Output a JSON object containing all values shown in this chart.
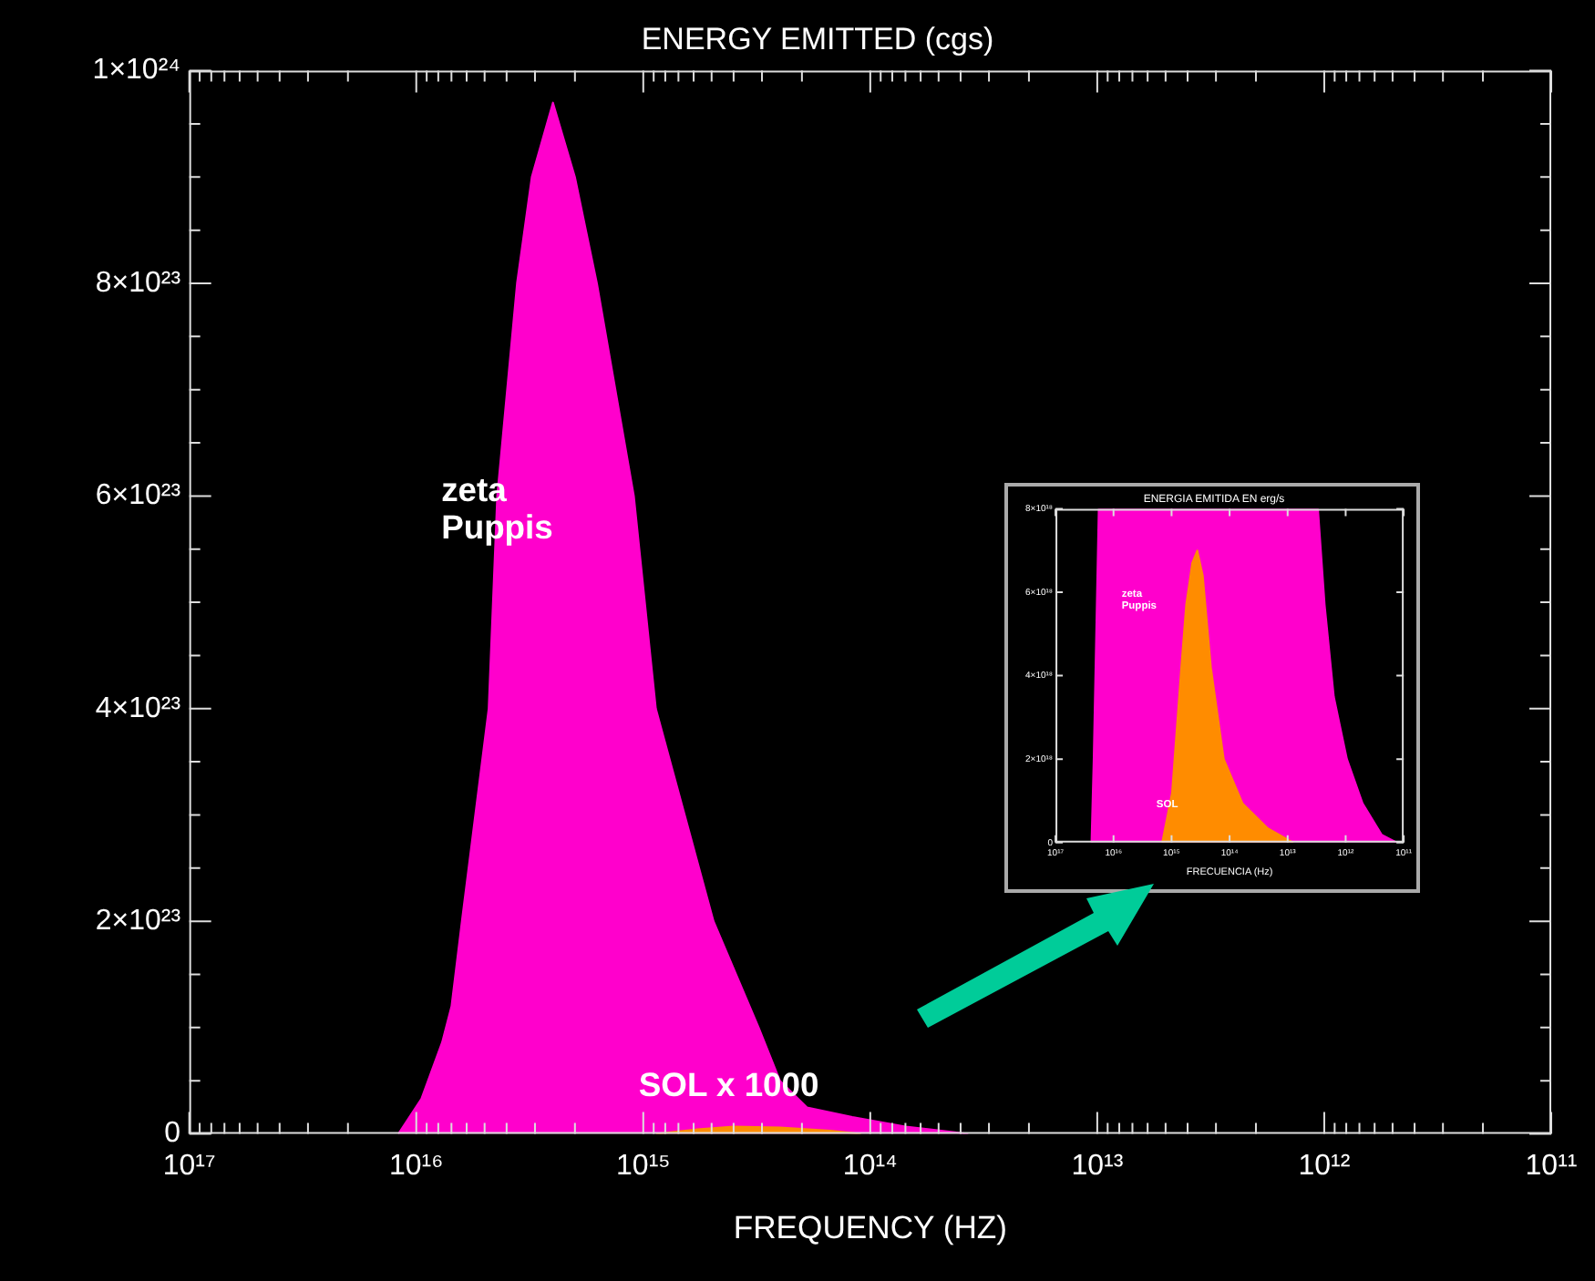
{
  "chart_data": [
    {
      "type": "area",
      "title": "ENERGY EMITTED (cgs)",
      "xlabel": "FREQUENCY (HZ)",
      "log": "x",
      "legend": false,
      "grid": false,
      "xlim": [
        1e+17,
        100000000000.0
      ],
      "xticks": [
        {
          "value": 1e+17,
          "label": "10¹⁷"
        },
        {
          "value": 9e+16,
          "label": null
        },
        {
          "value": 8e+16,
          "label": null
        },
        {
          "value": 7e+16,
          "label": null
        },
        {
          "value": 6e+16,
          "label": null
        },
        {
          "value": 5e+16,
          "label": null
        },
        {
          "value": 4e+16,
          "label": null
        },
        {
          "value": 3e+16,
          "label": null
        },
        {
          "value": 2e+16,
          "label": null
        },
        {
          "value": 1e+16,
          "label": "10¹⁶"
        },
        {
          "value": 9000000000000000.0,
          "label": null
        },
        {
          "value": 8000000000000000.0,
          "label": null
        },
        {
          "value": 7000000000000000.0,
          "label": null
        },
        {
          "value": 6000000000000000.0,
          "label": null
        },
        {
          "value": 5000000000000000.0,
          "label": null
        },
        {
          "value": 4000000000000000.0,
          "label": null
        },
        {
          "value": 3000000000000000.0,
          "label": null
        },
        {
          "value": 2000000000000000.0,
          "label": null
        },
        {
          "value": 1000000000000000.0,
          "label": "10¹⁵"
        },
        {
          "value": 900000000000000.0,
          "label": null
        },
        {
          "value": 800000000000000.0,
          "label": null
        },
        {
          "value": 700000000000000.0,
          "label": null
        },
        {
          "value": 600000000000000.0,
          "label": null
        },
        {
          "value": 500000000000000.0,
          "label": null
        },
        {
          "value": 400000000000000.0,
          "label": null
        },
        {
          "value": 300000000000000.0,
          "label": null
        },
        {
          "value": 200000000000000.0,
          "label": null
        },
        {
          "value": 100000000000000.0,
          "label": "10¹⁴"
        },
        {
          "value": 90000000000000.0,
          "label": null
        },
        {
          "value": 80000000000000.0,
          "label": null
        },
        {
          "value": 70000000000000.0,
          "label": null
        },
        {
          "value": 60000000000000.0,
          "label": null
        },
        {
          "value": 50000000000000.0,
          "label": null
        },
        {
          "value": 40000000000000.0,
          "label": null
        },
        {
          "value": 30000000000000.0,
          "label": null
        },
        {
          "value": 20000000000000.0,
          "label": null
        },
        {
          "value": 10000000000000.0,
          "label": "10¹³"
        },
        {
          "value": 9000000000000.0,
          "label": null
        },
        {
          "value": 8000000000000.0,
          "label": null
        },
        {
          "value": 7000000000000.0,
          "label": null
        },
        {
          "value": 6000000000000.0,
          "label": null
        },
        {
          "value": 5000000000000.0,
          "label": null
        },
        {
          "value": 4000000000000.0,
          "label": null
        },
        {
          "value": 3000000000000.0,
          "label": null
        },
        {
          "value": 2000000000000.0,
          "label": null
        },
        {
          "value": 1000000000000.0,
          "label": "10¹²"
        },
        {
          "value": 900000000000.0,
          "label": null
        },
        {
          "value": 800000000000.0,
          "label": null
        },
        {
          "value": 700000000000.0,
          "label": null
        },
        {
          "value": 600000000000.0,
          "label": null
        },
        {
          "value": 500000000000.0,
          "label": null
        },
        {
          "value": 400000000000.0,
          "label": null
        },
        {
          "value": 300000000000.0,
          "label": null
        },
        {
          "value": 200000000000.0,
          "label": null
        },
        {
          "value": 100000000000.0,
          "label": "10¹¹"
        }
      ],
      "ylim": [
        0,
        1e+24
      ],
      "yticks": [
        0,
        {
          "value": 5e+22,
          "label": null
        },
        {
          "value": 1e+23,
          "label": null
        },
        {
          "value": 1.5e+23,
          "label": null
        },
        {
          "value": 2e+23,
          "label": "2×10²³"
        },
        {
          "value": 2.5e+23,
          "label": null
        },
        {
          "value": 3e+23,
          "label": null
        },
        {
          "value": 3.5e+23,
          "label": null
        },
        {
          "value": 4e+23,
          "label": "4×10²³"
        },
        {
          "value": 4.5e+23,
          "label": null
        },
        {
          "value": 5e+23,
          "label": null
        },
        {
          "value": 5.5e+23,
          "label": null
        },
        {
          "value": 6e+23,
          "label": "6×10²³"
        },
        {
          "value": 6.5e+23,
          "label": null
        },
        {
          "value": 7e+23,
          "label": null
        },
        {
          "value": 7.5e+23,
          "label": null
        },
        {
          "value": 8e+23,
          "label": "8×10²³"
        },
        {
          "value": 8.5e+23,
          "label": null
        },
        {
          "value": 9e+23,
          "label": null
        },
        {
          "value": 9.5e+23,
          "label": null
        },
        {
          "value": 1e+24,
          "label": "1×10²⁴"
        }
      ],
      "series": [
        {
          "name": "zeta Puppis",
          "color": "#ff00cc",
          "x": [
            1.2e+16,
            9500000000000000.0,
            7700000000000000.0,
            7000000000000000.0,
            6300000000000000.0,
            4800000000000000.0,
            4400000000000000.0,
            3600000000000000.0,
            3100000000000000.0,
            2500000000000000.0,
            2000000000000000.0,
            1600000000000000.0,
            1100000000000000.0,
            880000000000000.0,
            490000000000000.0,
            310000000000000.0,
            250000000000000.0,
            190000000000000.0,
            120000000000000.0,
            70000000000000.0,
            37000000000000.0
          ],
          "values": [
            0,
            3.3e+22,
            8.6e+22,
            1.2e+23,
            2e+23,
            4e+23,
            6e+23,
            8e+23,
            9e+23,
            9.7e+23,
            9e+23,
            8e+23,
            6e+23,
            4e+23,
            2e+23,
            1e+23,
            5e+22,
            2.5e+22,
            1.6e+22,
            7e+21,
            0
          ]
        },
        {
          "name": "SOL x 1000",
          "color": "#ff8c00",
          "x": [
            880000000000000.0,
            600000000000000.0,
            400000000000000.0,
            250000000000000.0,
            150000000000000.0,
            110000000000000.0
          ],
          "values": [
            0,
            4e+21,
            7e+21,
            6e+21,
            3e+21,
            0
          ]
        }
      ]
    },
    {
      "type": "area",
      "title": "ENERGIA EMITIDA EN erg/s",
      "xlabel": "FRECUENCIA (Hz)",
      "log": "x",
      "legend": false,
      "grid": false,
      "xlim": [
        1e+17,
        100000000000.0
      ],
      "xticks": [
        {
          "value": 1e+17,
          "label": "10¹⁷"
        },
        {
          "value": 1e+16,
          "label": "10¹⁶"
        },
        {
          "value": 1000000000000000.0,
          "label": "10¹⁵"
        },
        {
          "value": 100000000000000.0,
          "label": "10¹⁴"
        },
        {
          "value": 10000000000000.0,
          "label": "10¹³"
        },
        {
          "value": 1000000000000.0,
          "label": "10¹²"
        },
        {
          "value": 100000000000.0,
          "label": "10¹¹"
        }
      ],
      "ylim": [
        0,
        8e+18
      ],
      "yticks": [
        0,
        {
          "value": 2e+18,
          "label": "2×10¹⁸"
        },
        {
          "value": 4e+18,
          "label": "4×10¹⁸"
        },
        {
          "value": 6e+18,
          "label": "6×10¹⁸"
        },
        {
          "value": 8e+18,
          "label": "8×10¹⁸"
        }
      ],
      "series": [
        {
          "name": "zeta Puppis",
          "color": "#ff00cc",
          "x": [
            2.4e+16,
            2.2e+16,
            1.8e+16,
            3000000000000.0,
            2300000000000.0,
            1600000000000.0,
            950000000000.0,
            510000000000.0,
            240000000000.0,
            130000000000.0
          ],
          "values": [
            0,
            2e+18,
            8e+18,
            8e+18,
            5.7e+18,
            3.5e+18,
            2e+18,
            9.4e+17,
            1.9e+17,
            0
          ]
        },
        {
          "name": "SOL",
          "color": "#ff8c00",
          "x": [
            1450000000000000.0,
            980000000000000.0,
            680000000000000.0,
            560000000000000.0,
            440000000000000.0,
            360000000000000.0,
            290000000000000.0,
            210000000000000.0,
            126000000000000.0,
            60000000000000.0,
            22000000000000.0,
            8000000000000.0
          ],
          "values": [
            0,
            1.2e+18,
            4.2e+18,
            5.7e+18,
            6.7e+18,
            7e+18,
            6.4e+18,
            4.2e+18,
            2e+18,
            9.4e+17,
            3.4e+17,
            0
          ]
        }
      ]
    }
  ]
}
